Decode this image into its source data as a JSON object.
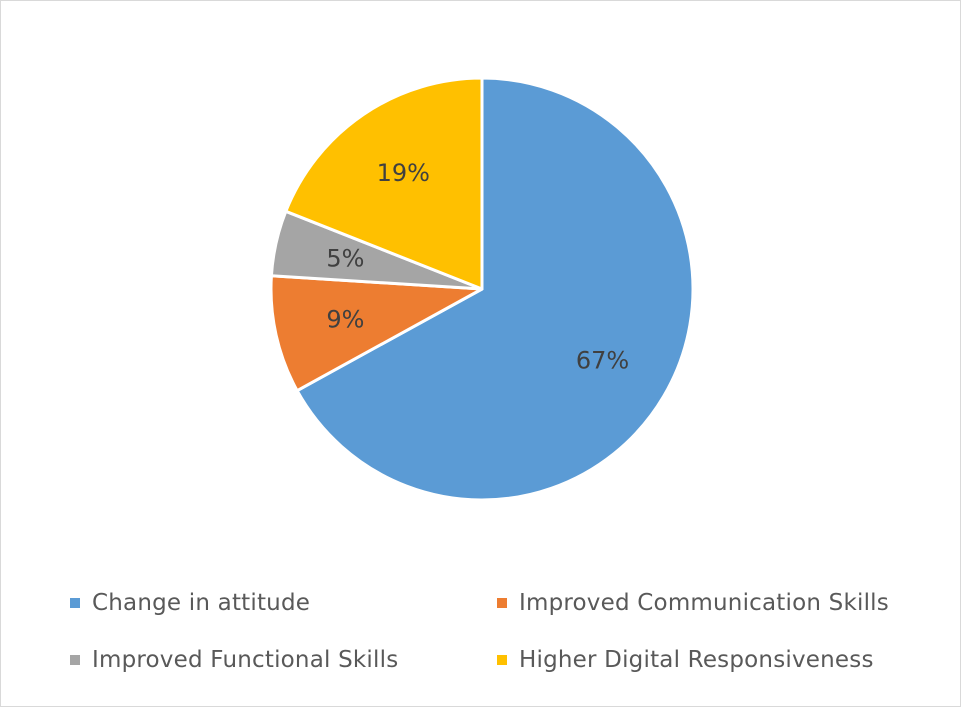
{
  "chart_data": {
    "type": "pie",
    "categories": [
      "Change in attitude",
      "Improved Communication Skills",
      "Improved Functional Skills",
      "Higher Digital Responsiveness"
    ],
    "values": [
      67,
      9,
      5,
      19
    ],
    "data_labels": [
      "67%",
      "9%",
      "5%",
      "19%"
    ],
    "colors": [
      "#5b9bd5",
      "#ed7d31",
      "#a5a5a5",
      "#ffc000"
    ],
    "start_angle_deg": 0,
    "direction": "clockwise",
    "legend_position": "bottom",
    "title": ""
  }
}
